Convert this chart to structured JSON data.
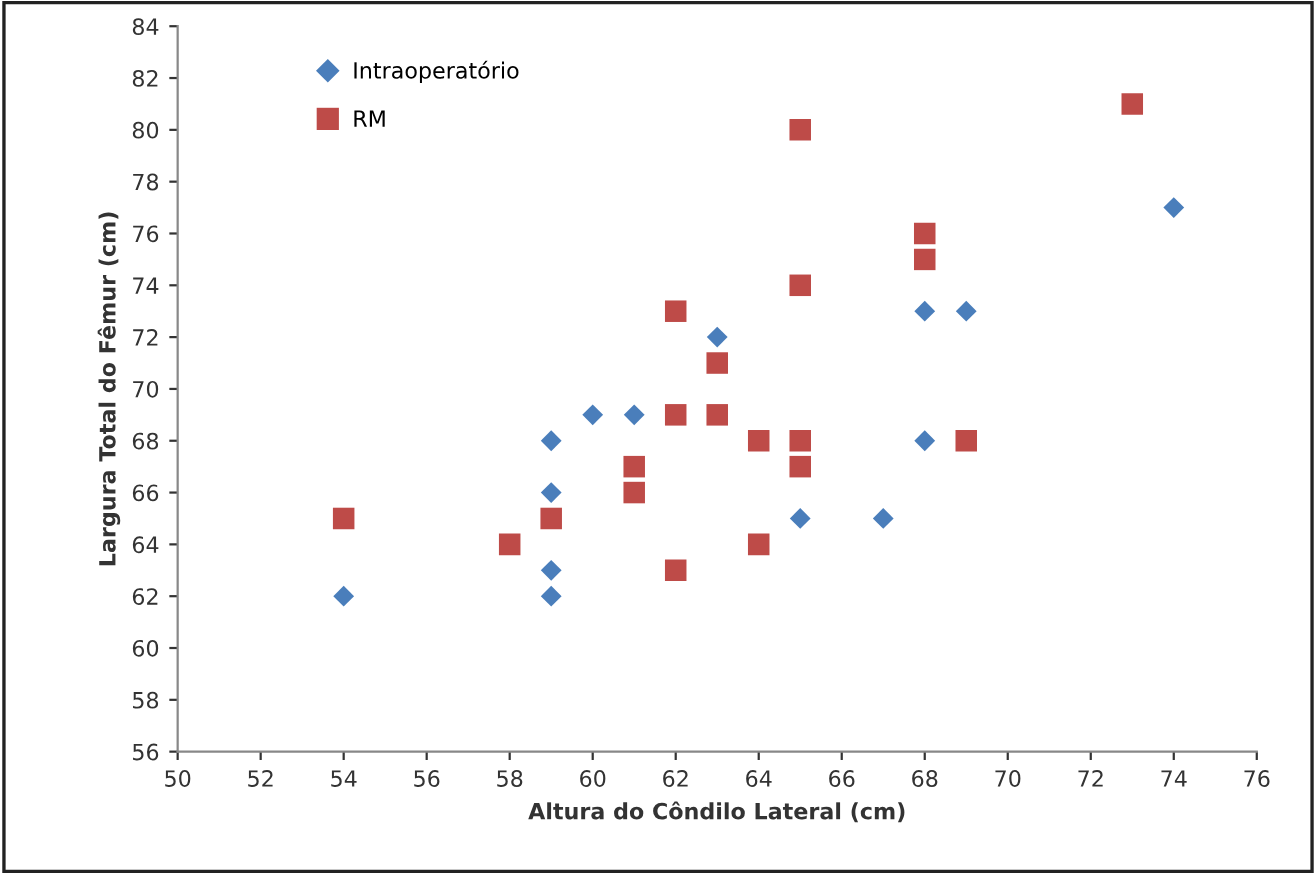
{
  "chart_data": {
    "type": "scatter",
    "xlabel": "Altura do Côndilo Lateral (cm)",
    "ylabel": "Largura Total do Fêmur (cm)",
    "xlim": [
      50,
      76
    ],
    "xticks": [
      50,
      52,
      54,
      56,
      58,
      60,
      62,
      64,
      66,
      68,
      70,
      72,
      74,
      76
    ],
    "ylim": [
      56,
      84
    ],
    "yticks": [
      56,
      58,
      60,
      62,
      64,
      66,
      68,
      70,
      72,
      74,
      76,
      78,
      80,
      82,
      84
    ],
    "grid": false,
    "legend": "top left",
    "series": [
      {
        "name": "Intraoperatório",
        "color": "#4a7ebb",
        "marker": "diamond",
        "x": [
          54,
          59,
          59,
          59,
          59,
          60,
          61,
          63,
          65,
          67,
          68,
          69,
          68,
          74
        ],
        "values": [
          62,
          68,
          66,
          63,
          62,
          69,
          69,
          72,
          65,
          65,
          73,
          73,
          68,
          77
        ]
      },
      {
        "name": "RM",
        "color": "#be4b48",
        "marker": "square",
        "x": [
          54,
          58,
          59,
          61,
          61,
          62,
          62,
          62,
          63,
          63,
          64,
          64,
          65,
          65,
          65,
          65,
          68,
          68,
          69,
          73
        ],
        "values": [
          65,
          64,
          65,
          67,
          66,
          73,
          69,
          63,
          71,
          69,
          68,
          64,
          80,
          74,
          68,
          67,
          76,
          75,
          68,
          81
        ]
      }
    ]
  }
}
